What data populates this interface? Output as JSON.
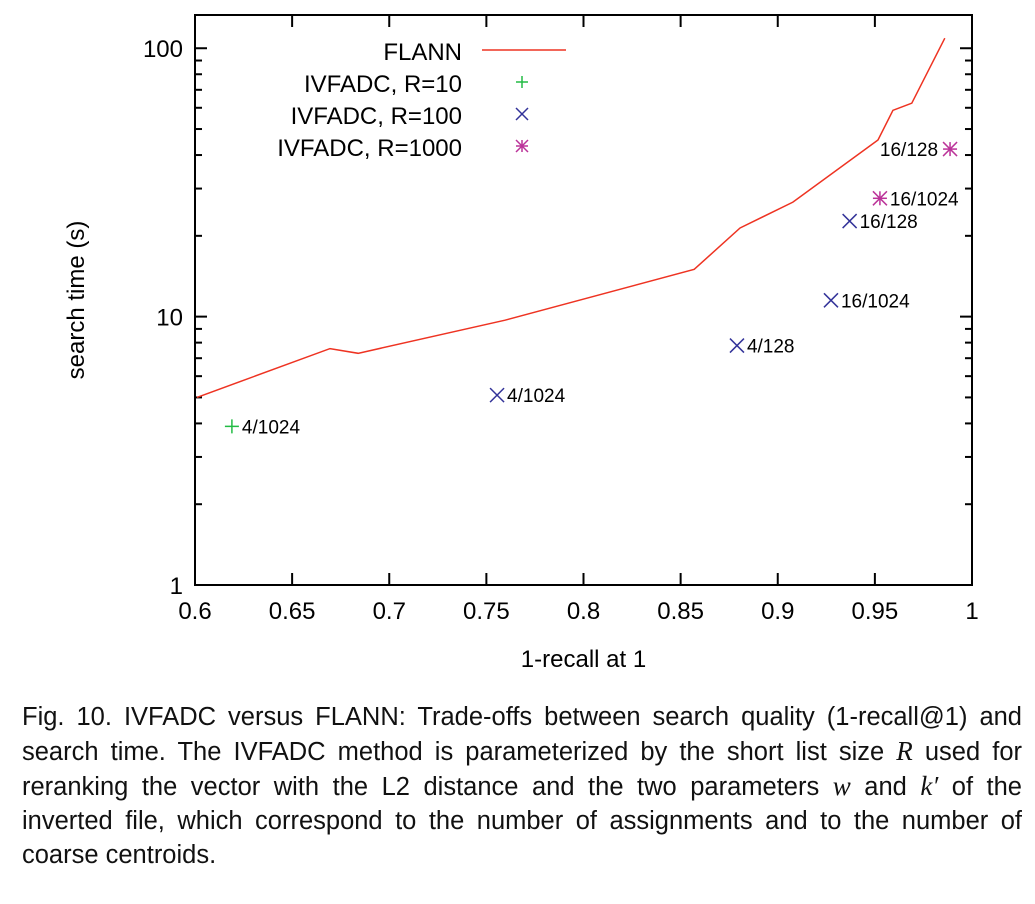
{
  "chart_data": {
    "type": "line",
    "xlabel": "1-recall at 1",
    "ylabel": "search time (s)",
    "xlim": [
      0.6,
      1.0
    ],
    "ylim": [
      1,
      133
    ],
    "yscale": "log",
    "xticks": [
      "0.6",
      "0.65",
      "0.7",
      "0.75",
      "0.8",
      "0.85",
      "0.9",
      "0.95",
      "1"
    ],
    "yticks": [
      "1",
      "10",
      "100"
    ],
    "grid": false,
    "legend": "top-left",
    "series": [
      {
        "name": "FLANN",
        "type": "line",
        "color": "#ee3322",
        "x": [
          0.601,
          0.6695,
          0.684,
          0.7596,
          0.857,
          0.8806,
          0.9078,
          0.9516,
          0.9593,
          0.969,
          0.986
        ],
        "y": [
          5.0,
          7.6,
          7.3,
          9.7,
          15.0,
          21.4,
          26.7,
          45.5,
          58.7,
          62.4,
          109
        ]
      },
      {
        "name": "IVFADC, R=10",
        "type": "scatter",
        "marker": "plus",
        "color": "#22bb44",
        "points": [
          {
            "x": 0.619,
            "y": 3.9,
            "label": "4/1024"
          }
        ]
      },
      {
        "name": "IVFADC, R=100",
        "type": "scatter",
        "marker": "cross",
        "color": "#333399",
        "points": [
          {
            "x": 0.7555,
            "y": 5.1,
            "label": "4/1024"
          },
          {
            "x": 0.879,
            "y": 7.8,
            "label": "4/128"
          },
          {
            "x": 0.9274,
            "y": 11.5,
            "label": "16/1024"
          },
          {
            "x": 0.937,
            "y": 22.7,
            "label": "16/128"
          }
        ]
      },
      {
        "name": "IVFADC, R=1000",
        "type": "scatter",
        "marker": "star",
        "color": "#bb3399",
        "points": [
          {
            "x": 0.9526,
            "y": 27.6,
            "label": "16/1024"
          },
          {
            "x": 0.9887,
            "y": 42.1,
            "label": "16/128",
            "label_side": "left"
          }
        ]
      }
    ]
  },
  "caption": {
    "p1": "Fig. 10. IVFADC versus FLANN: Trade-offs between search quality (1-recall@1) and search time. The IVFADC method is parameterized by the short list size ",
    "R": "R",
    "p2": " used for reranking the vector with the L2 distance and the two parameters ",
    "w": "w",
    "p3": " and ",
    "k": "k′",
    "p4": " of the inverted file, which correspond to the number of assignments and to the number of coarse centroids."
  }
}
